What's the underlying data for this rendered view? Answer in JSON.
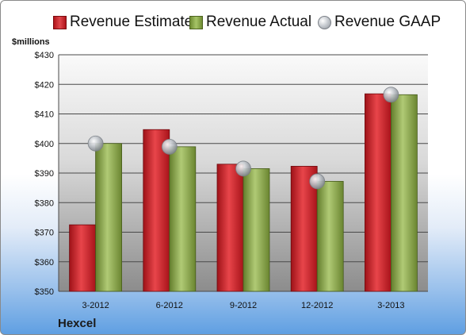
{
  "legend": {
    "estimate": "Revenue Estimate",
    "actual": "Revenue Actual",
    "gaap": "Revenue GAAP"
  },
  "y_unit_label": "$millions",
  "company": "Hexcel",
  "colors": {
    "estimate": "#c8171e",
    "actual": "#8fac4e",
    "gaap": "#b9bec4"
  },
  "chart_data": {
    "type": "bar",
    "categories": [
      "3-2012",
      "6-2012",
      "9-2012",
      "12-2012",
      "3-2013"
    ],
    "series": [
      {
        "name": "Revenue Estimate",
        "values": [
          372.5,
          404.7,
          393.0,
          392.3,
          416.8
        ]
      },
      {
        "name": "Revenue Actual",
        "values": [
          400.0,
          398.9,
          391.5,
          387.2,
          416.5
        ]
      },
      {
        "name": "Revenue GAAP",
        "marker": "circle",
        "values": [
          400.0,
          398.9,
          391.5,
          387.2,
          416.5
        ]
      }
    ],
    "ylabel": "$millions",
    "ylim": [
      350,
      430
    ],
    "yticks": [
      350,
      360,
      370,
      380,
      390,
      400,
      410,
      420,
      430
    ],
    "ytick_labels": [
      "$350",
      "$360",
      "$370",
      "$380",
      "$390",
      "$400",
      "$410",
      "$420",
      "$430"
    ],
    "grid": true,
    "legend_position": "top"
  }
}
